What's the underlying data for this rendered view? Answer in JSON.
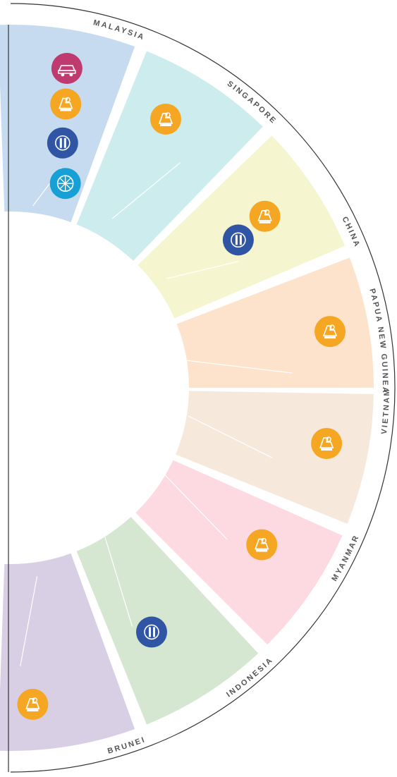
{
  "segments": [
    {
      "label": "MALAYSIA",
      "color": "#c6dbef",
      "icons": [
        "automotive-icon",
        "engineering-icon",
        "technology-icon",
        "energy-icon"
      ]
    },
    {
      "label": "SINGAPORE",
      "color": "#cdeced",
      "icons": [
        "engineering-icon"
      ]
    },
    {
      "label": "CHINA",
      "color": "#f5f5d0",
      "icons": [
        "engineering-icon",
        "technology-icon"
      ]
    },
    {
      "label": "PAPUA NEW GUINEA",
      "color": "#fde3cc",
      "icons": [
        "engineering-icon"
      ]
    },
    {
      "label": "VIETNAM",
      "color": "#f6e8da",
      "icons": [
        "engineering-icon"
      ]
    },
    {
      "label": "MYANMAR",
      "color": "#fdd9e2",
      "icons": [
        "engineering-icon"
      ]
    },
    {
      "label": "INDONESIA",
      "color": "#d5e7d1",
      "icons": [
        "technology-icon"
      ]
    },
    {
      "label": "BRUNEI",
      "color": "#d9cfe5",
      "icons": [
        "engineering-icon"
      ]
    }
  ],
  "icon_colors": {
    "automotive-icon": "#bf3a6e",
    "engineering-icon": "#f5a623",
    "technology-icon": "#2f55a4",
    "energy-icon": "#16a0d6"
  }
}
